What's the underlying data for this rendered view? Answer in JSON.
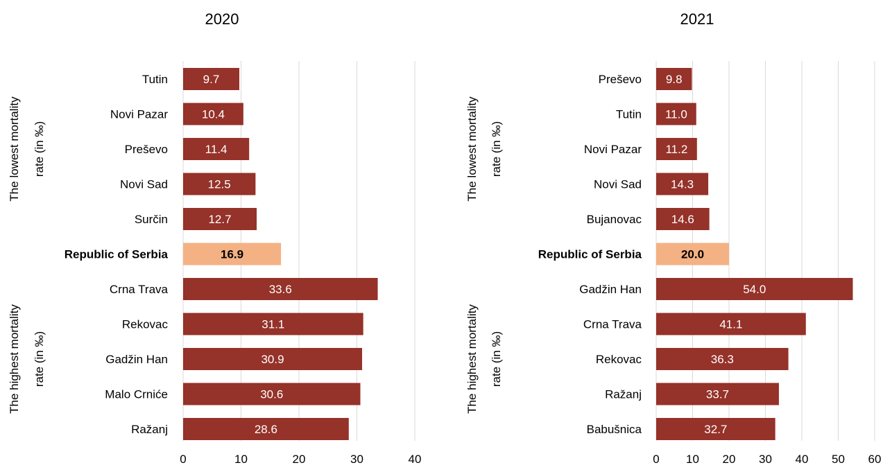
{
  "chart_data": [
    {
      "type": "bar",
      "orientation": "horizontal",
      "title": "2020",
      "group_labels": [
        "The lowest mortality rate (in ‰)",
        "The highest mortality rate (in ‰)"
      ],
      "group_label_lines": [
        [
          "The lowest mortality",
          "rate (in ‰)"
        ],
        [
          "The highest mortality",
          "rate (in ‰)"
        ]
      ],
      "categories": [
        "Tutin",
        "Novi Pazar",
        "Preševo",
        "Novi Sad",
        "Surčin",
        "Republic of Serbia",
        "Crna Trava",
        "Rekovac",
        "Gadžin Han",
        "Malo Crniće",
        "Ražanj"
      ],
      "values": [
        9.7,
        10.4,
        11.4,
        12.5,
        12.7,
        16.9,
        33.6,
        31.1,
        30.9,
        30.6,
        28.6
      ],
      "data_labels": [
        "9.7",
        "10.4",
        "11.4",
        "12.5",
        "12.7",
        "16.9",
        "33.6",
        "31.1",
        "30.9",
        "30.6",
        "28.6"
      ],
      "highlight_index": 5,
      "xlim": [
        0,
        40
      ],
      "xticks": [
        0,
        10,
        20,
        30,
        40
      ],
      "grid": "vertical",
      "legend": "none",
      "colors": {
        "bar": "#953229",
        "highlight": "#f4b183",
        "label": "#ffffff",
        "highlight_label": "#000000",
        "grid": "#d9d9d9"
      }
    },
    {
      "type": "bar",
      "orientation": "horizontal",
      "title": "2021",
      "group_labels": [
        "The lowest mortality rate (in ‰)",
        "The highest mortality rate (in ‰)"
      ],
      "group_label_lines": [
        [
          "The lowest mortality",
          "rate (in ‰)"
        ],
        [
          "The highest mortality",
          "rate (in ‰)"
        ]
      ],
      "categories": [
        "Preševo",
        "Tutin",
        "Novi Pazar",
        "Novi Sad",
        "Bujanovac",
        "Republic of Serbia",
        "Gadžin Han",
        "Crna Trava",
        "Rekovac",
        "Ražanj",
        "Babušnica"
      ],
      "values": [
        9.8,
        11.0,
        11.2,
        14.3,
        14.6,
        20.0,
        54.0,
        41.1,
        36.3,
        33.7,
        32.7
      ],
      "data_labels": [
        "9.8",
        "11.0",
        "11.2",
        "14.3",
        "14.6",
        "20.0",
        "54.0",
        "41.1",
        "36.3",
        "33.7",
        "32.7"
      ],
      "highlight_index": 5,
      "xlim": [
        0,
        60
      ],
      "xticks": [
        0,
        10,
        20,
        30,
        40,
        50,
        60
      ],
      "grid": "vertical",
      "legend": "none",
      "colors": {
        "bar": "#953229",
        "highlight": "#f4b183",
        "label": "#ffffff",
        "highlight_label": "#000000",
        "grid": "#d9d9d9"
      }
    }
  ]
}
